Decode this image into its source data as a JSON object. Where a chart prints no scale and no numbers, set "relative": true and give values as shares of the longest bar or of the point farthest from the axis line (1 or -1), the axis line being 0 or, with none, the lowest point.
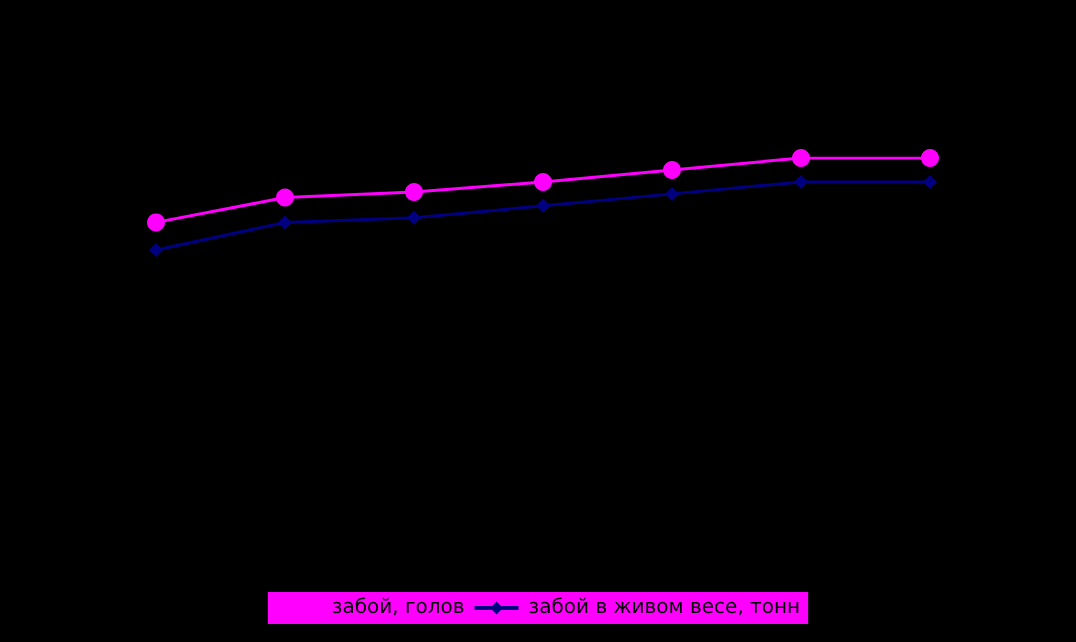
{
  "chart_data": {
    "type": "line",
    "relative": true,
    "categories": [
      null,
      null,
      null,
      null,
      null,
      null,
      null
    ],
    "series": [
      {
        "name": "забой, голов",
        "color": "#ff00ff",
        "marker": "circle",
        "values": [
          0.3,
          0.57,
          0.63,
          0.74,
          0.87,
          1,
          1
        ]
      },
      {
        "name": "забой в живом весе, тонн",
        "color": "#000080",
        "marker": "diamond",
        "values": [
          0,
          0.3,
          0.35,
          0.48,
          0.61,
          0.74,
          0.74
        ]
      }
    ],
    "legend": "bottom",
    "grid": false
  }
}
